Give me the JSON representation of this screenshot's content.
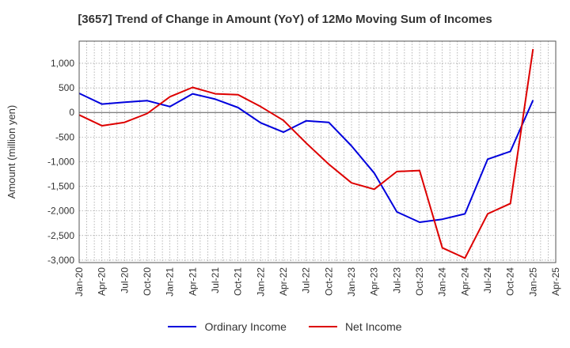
{
  "chart_data": {
    "type": "line",
    "title": "[3657]  Trend of Change in Amount (YoY) of 12Mo Moving Sum of Incomes",
    "ylabel": "Amount (million yen)",
    "xlabel": "",
    "ylim": [
      -3050,
      1450
    ],
    "yticks": [
      1000,
      500,
      0,
      -500,
      -1000,
      -1500,
      -2000,
      -2500,
      -3000
    ],
    "ytick_labels": [
      "1,000",
      "500",
      "0",
      "-500",
      "-1,000",
      "-1,500",
      "-2,000",
      "-2,500",
      "-3,000"
    ],
    "x_labels": [
      "Jan-20",
      "Apr-20",
      "Jul-20",
      "Oct-20",
      "Jan-21",
      "Apr-21",
      "Jul-21",
      "Oct-21",
      "Jan-22",
      "Apr-22",
      "Jul-22",
      "Oct-22",
      "Jan-23",
      "Apr-23",
      "Jul-23",
      "Oct-23",
      "Jan-24",
      "Apr-24",
      "Jul-24",
      "Oct-24",
      "Jan-25",
      "Apr-25"
    ],
    "grid": true,
    "legend_position": "bottom",
    "series": [
      {
        "name": "Ordinary Income",
        "color": "#0000dd",
        "values": [
          390,
          170,
          210,
          240,
          120,
          380,
          270,
          100,
          -210,
          -400,
          -170,
          -200,
          -680,
          -1230,
          -2020,
          -2230,
          -2170,
          -2060,
          -950,
          -790,
          250,
          null
        ]
      },
      {
        "name": "Net Income",
        "color": "#dd0000",
        "values": [
          -50,
          -270,
          -200,
          -20,
          320,
          510,
          380,
          360,
          120,
          -160,
          -620,
          -1050,
          -1430,
          -1560,
          -1200,
          -1180,
          -2750,
          -2960,
          -2060,
          -1850,
          1290,
          null
        ]
      }
    ]
  }
}
